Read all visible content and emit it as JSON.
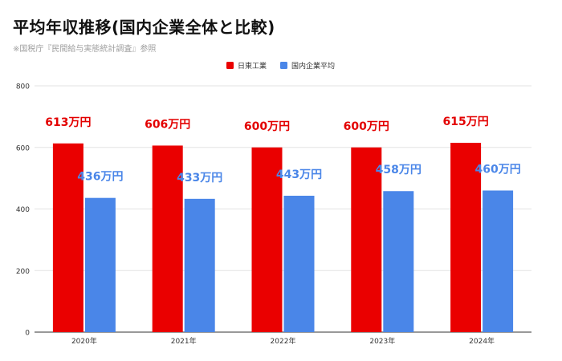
{
  "title": "平均年収推移(国内企業全体と比較)",
  "subtitle": "※国税庁『民間給与実態統計調査』参照",
  "chart_data": {
    "type": "bar",
    "categories": [
      "2020年",
      "2021年",
      "2022年",
      "2023年",
      "2024年"
    ],
    "series": [
      {
        "name": "日東工業",
        "values": [
          613,
          606,
          600,
          600,
          615
        ],
        "labels": [
          "613万円",
          "606万円",
          "600万円",
          "600万円",
          "615万円"
        ],
        "color": "#ea0000",
        "label_color": "#e30000"
      },
      {
        "name": "国内企業平均",
        "values": [
          436,
          433,
          443,
          458,
          460
        ],
        "labels": [
          "436万円",
          "433万円",
          "443万円",
          "458万円",
          "460万円"
        ],
        "color": "#4a86e8",
        "label_color": "#4a86e8"
      }
    ],
    "yticks": [
      "0",
      "200",
      "400",
      "600",
      "800"
    ],
    "ylim": [
      0,
      800
    ],
    "xlabel": "",
    "ylabel": "",
    "grid": true,
    "legend_position": "top-center"
  }
}
